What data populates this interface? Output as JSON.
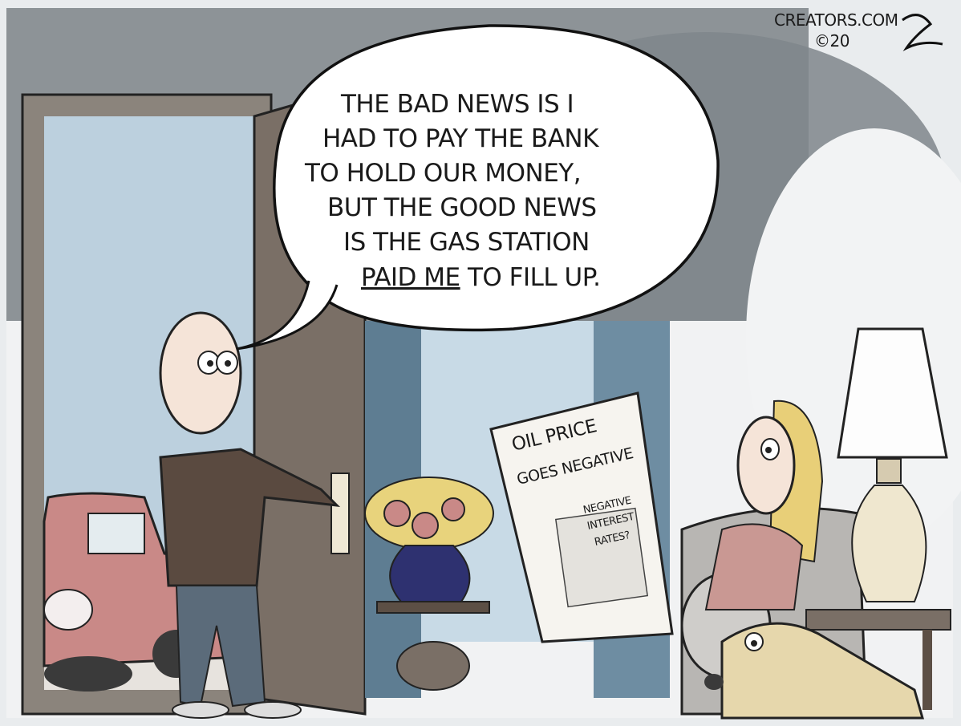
{
  "credit": {
    "site": "CREATORS.COM",
    "year": "©20",
    "signature": "Rex"
  },
  "speech_bubble": {
    "lines": [
      "THE BAD NEWS IS I",
      "HAD TO PAY THE BANK",
      "TO HOLD OUR MONEY,",
      "BUT THE GOOD NEWS",
      "IS THE GAS STATION"
    ],
    "last_line_underlined": "PAID ME",
    "last_line_rest": " TO FILL UP."
  },
  "newspaper": {
    "headline_line1": "OIL PRICE",
    "headline_line2": "GOES NEGATIVE",
    "sub_line1": "NEGATIVE",
    "sub_line2": "INTEREST",
    "sub_line3": "RATES?"
  },
  "colors": {
    "wall_gray": "#8d9397",
    "door_brown": "#7a6f66",
    "sky_blue": "#bcd0de",
    "car_red": "#c98987",
    "jacket_brown": "#5a4a40",
    "vase_blue": "#2e3170",
    "lamp_cream": "#efe7cf",
    "dog_tan": "#e6d7ac",
    "hair_blonde": "#e8cf78"
  }
}
